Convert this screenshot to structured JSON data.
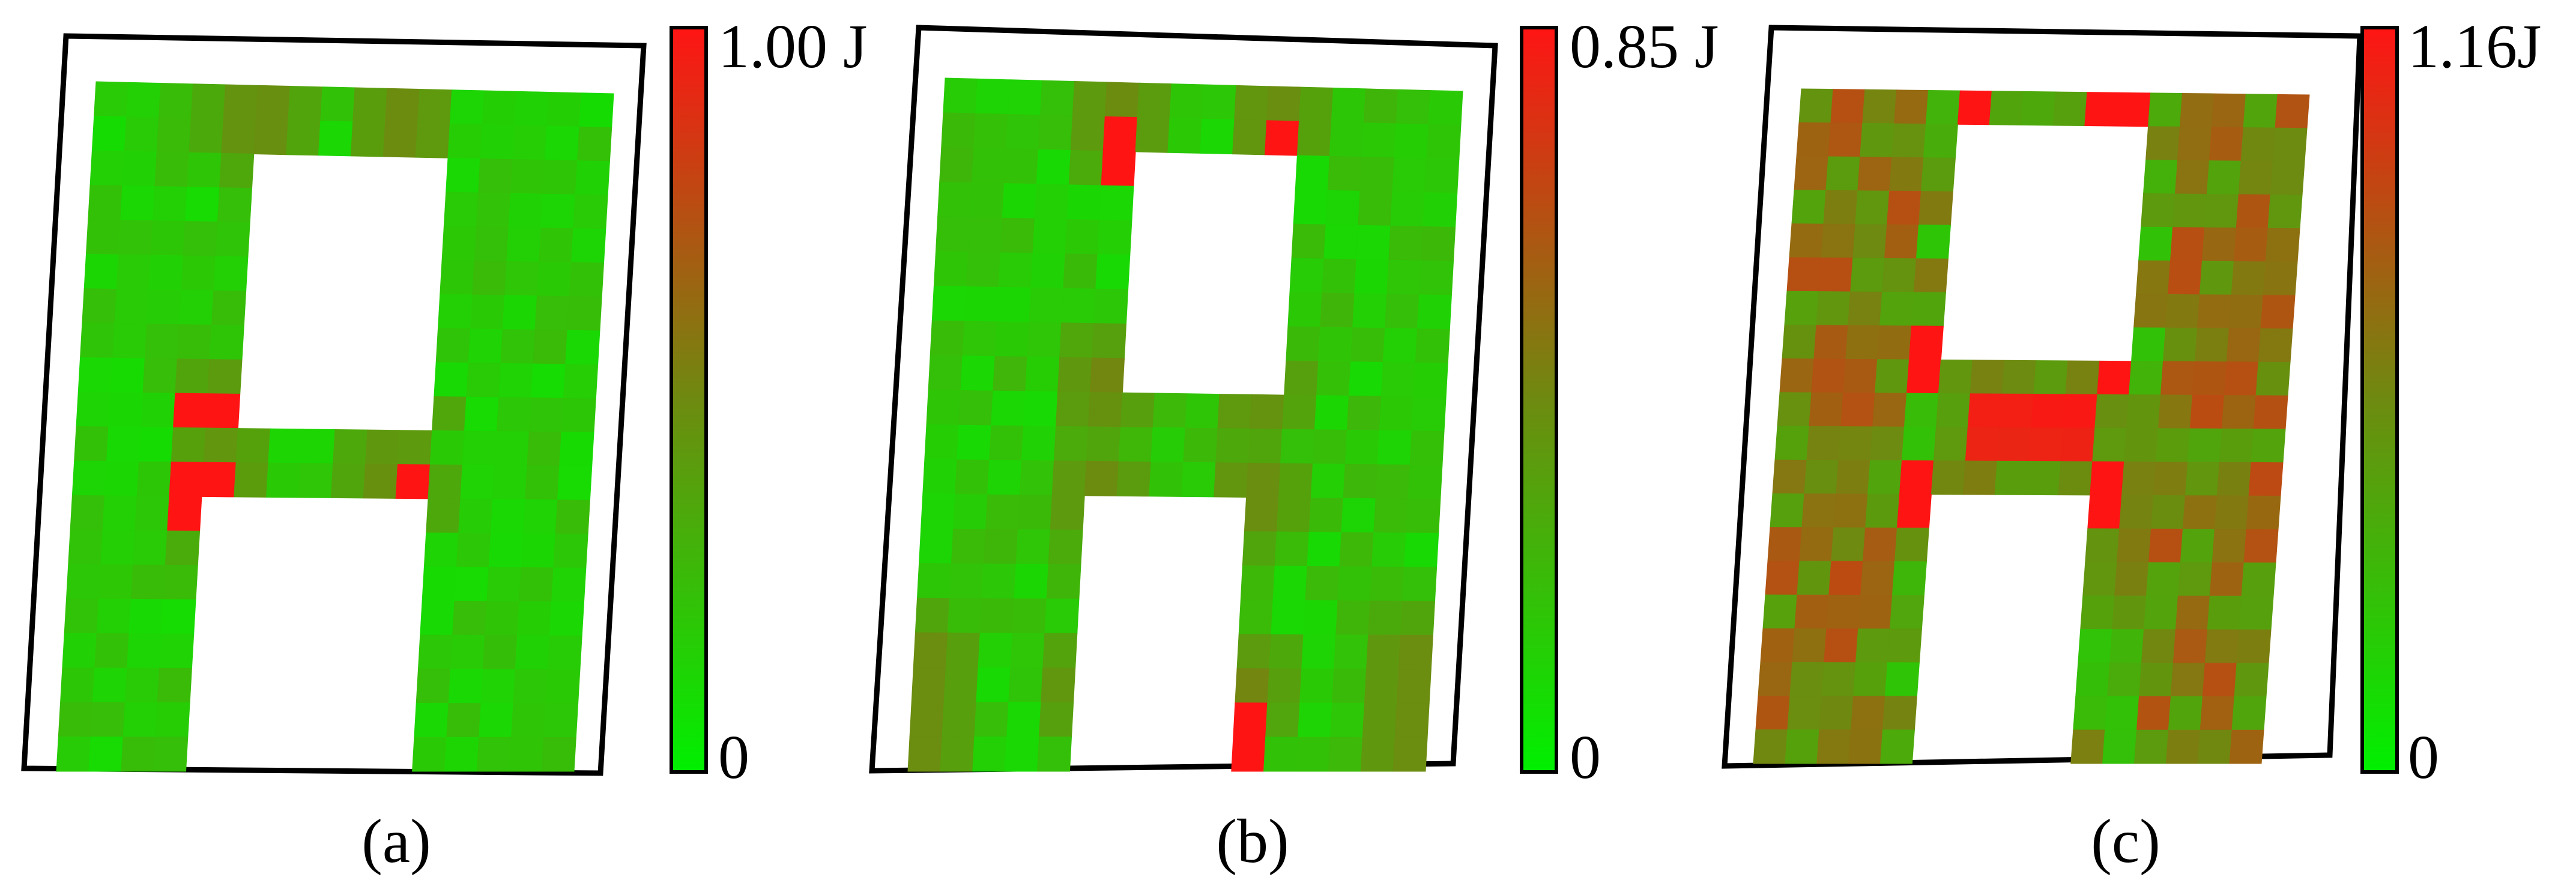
{
  "panels": [
    {
      "caption": "(a)",
      "scale_max_label": "1.00 J",
      "scale_min_label": "0",
      "scale_max_value": 1.0
    },
    {
      "caption": "(b)",
      "scale_max_label": "0.85 J",
      "scale_min_label": "0",
      "scale_max_value": 0.85
    },
    {
      "caption": "(c)",
      "scale_max_label": "1.16J",
      "scale_min_label": "0",
      "scale_max_value": 1.16
    }
  ],
  "colors": {
    "low": "#00f000",
    "mid": "#6e8a10",
    "high": "#ff1414",
    "outline": "#000000"
  }
}
